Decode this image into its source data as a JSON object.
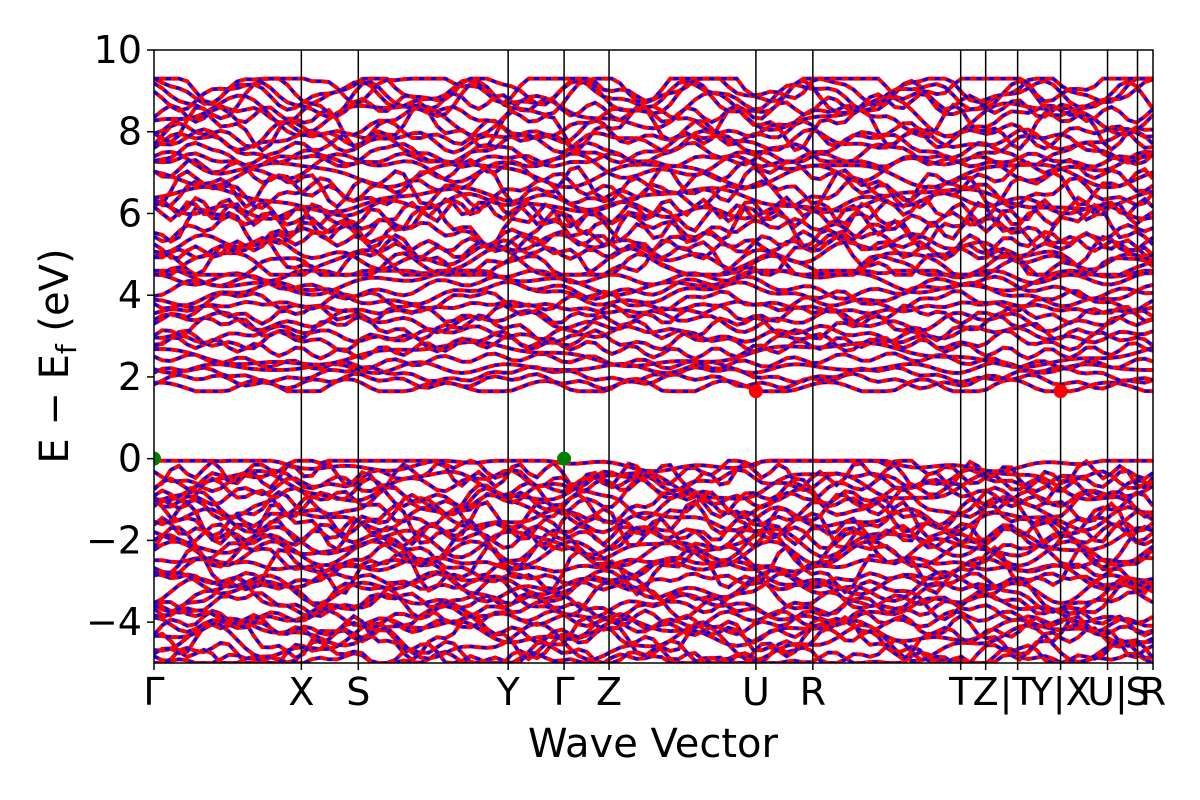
{
  "chart_data": {
    "type": "line",
    "title": "",
    "xlabel": "Wave Vector",
    "ylabel_parts": {
      "main": "E − E",
      "sub": "f",
      "unit": " (eV)"
    },
    "ylim": [
      -5,
      10
    ],
    "yticks": [
      -4,
      -2,
      0,
      2,
      4,
      6,
      8,
      10
    ],
    "ytick_labels": [
      "−4",
      "−2",
      "0",
      "2",
      "4",
      "6",
      "8",
      "10"
    ],
    "xlim": [
      0,
      1
    ],
    "kpoints": [
      {
        "label": "Γ",
        "x": 0.0
      },
      {
        "label": "X",
        "x": 0.1475
      },
      {
        "label": "S",
        "x": 0.2045
      },
      {
        "label": "Y",
        "x": 0.3545
      },
      {
        "label": "Γ",
        "x": 0.4105
      },
      {
        "label": "Z",
        "x": 0.4555
      },
      {
        "label": "U",
        "x": 0.6025
      },
      {
        "label": "R",
        "x": 0.6595
      },
      {
        "label": "T",
        "x": 0.8075
      },
      {
        "label": "Z",
        "x": 0.8325
      },
      {
        "label": "|T",
        "x": 0.8645
      },
      {
        "label": "Y|X",
        "x": 0.9075
      },
      {
        "label": "U|",
        "x": 0.9545
      },
      {
        "label": "S",
        "x": 0.9845
      },
      {
        "label": "R",
        "x": 1.0
      }
    ],
    "series": [
      {
        "role": "spin-up",
        "color": "#ff0000",
        "style": "solid"
      },
      {
        "role": "spin-down",
        "color": "#0000ff",
        "style": "dashed"
      }
    ],
    "band_groups": [
      {
        "range": [
          -5.0,
          -0.05
        ],
        "count": 36
      },
      {
        "range": [
          1.65,
          4.6
        ],
        "count": 18
      },
      {
        "range": [
          4.5,
          9.3
        ],
        "count": 30
      }
    ],
    "vbm_markers": [
      {
        "x": 0.0,
        "y": 0.0,
        "color": "#008000"
      },
      {
        "x": 0.4105,
        "y": 0.0,
        "color": "#008000"
      }
    ],
    "cbm_markers": [
      {
        "x": 0.6025,
        "y": 1.65,
        "color": "#ff0000"
      },
      {
        "x": 0.9075,
        "y": 1.65,
        "color": "#ff0000"
      }
    ]
  }
}
